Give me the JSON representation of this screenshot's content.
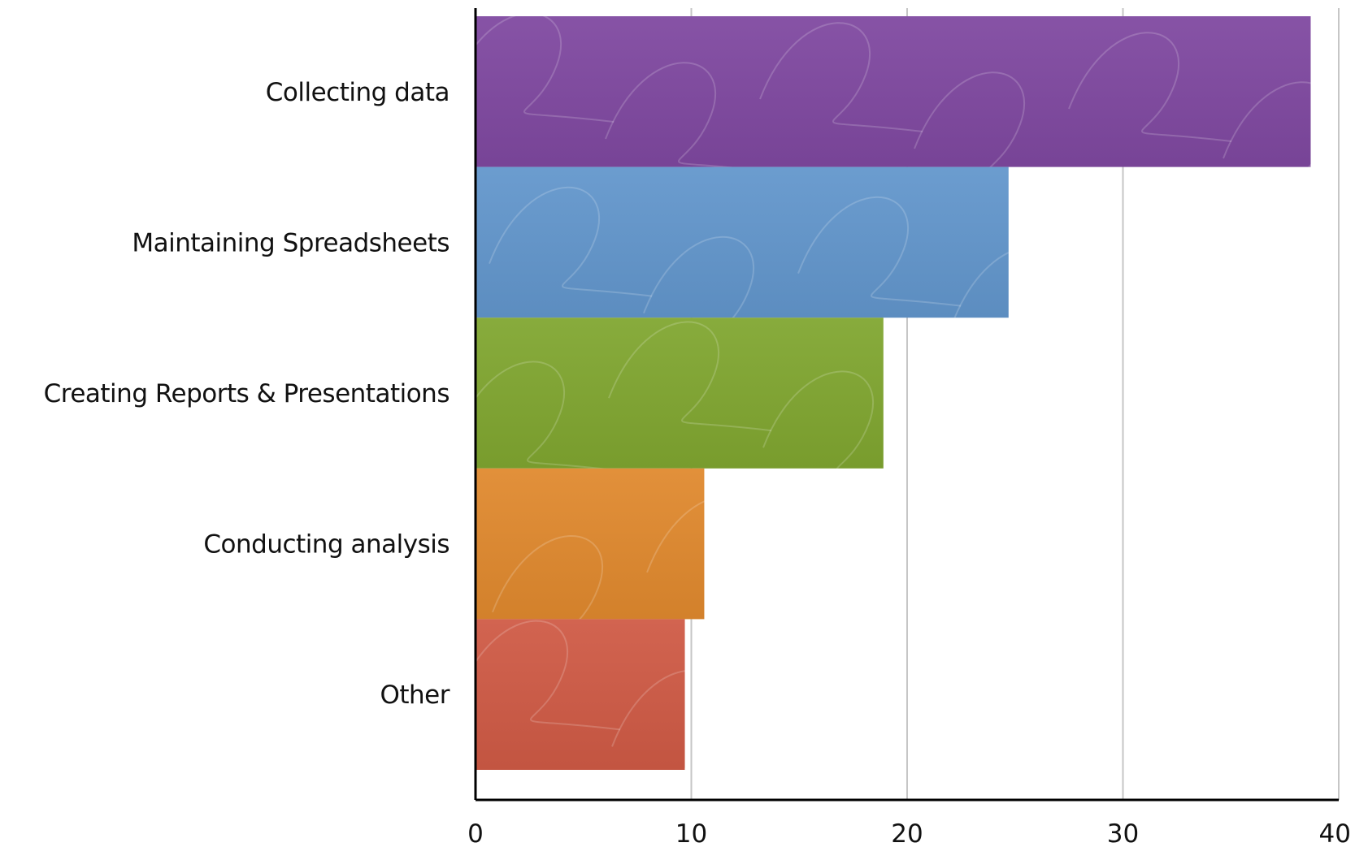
{
  "chart_data": {
    "type": "bar",
    "orientation": "horizontal",
    "categories": [
      "Collecting data",
      "Maintaining Spreadsheets",
      "Creating Reports & Presentations",
      "Conducting analysis",
      "Other"
    ],
    "values": [
      38.7,
      24.7,
      18.9,
      10.6,
      9.7
    ],
    "colors": [
      "#7f48a0",
      "#6296cc",
      "#80a630",
      "#e0892e",
      "#cf5a45"
    ],
    "xlim": [
      0,
      40
    ],
    "xticks": [
      0,
      10,
      20,
      30,
      40
    ],
    "grid": "vertical",
    "legend": "none",
    "title": "",
    "xlabel": "",
    "ylabel": ""
  }
}
